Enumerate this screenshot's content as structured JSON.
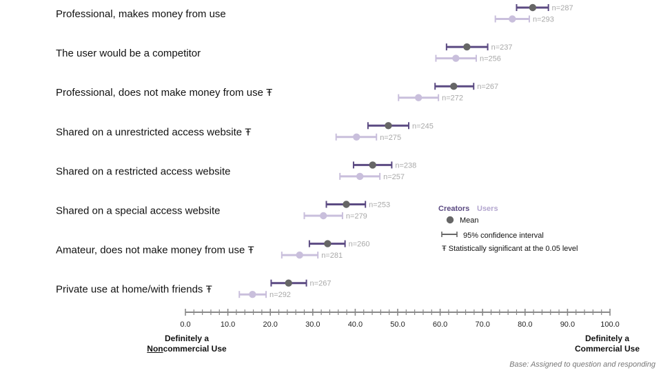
{
  "chart_data": {
    "type": "errorbar",
    "title": "",
    "xlabel": "",
    "xlim": [
      0,
      100
    ],
    "xticks": [
      "0.0",
      "10.0",
      "20.0",
      "30.0",
      "40.0",
      "50.0",
      "60.0",
      "70.0",
      "80.0",
      "90.0",
      "100.0"
    ],
    "x_minor_step": 2,
    "axis_end_labels": {
      "left_line1": "Definitely a",
      "left_underlined": "Non",
      "left_rest": "commercial Use",
      "right_line1": "Definitely a",
      "right_line2": "Commercial Use"
    },
    "series": [
      {
        "name": "Creators",
        "color": "#5b4a82",
        "marker_color": "#666666"
      },
      {
        "name": "Users",
        "color": "#c9bfdc",
        "marker_color": "#c9bfdc"
      }
    ],
    "categories": [
      {
        "label": "Professional, makes money from use",
        "creators": {
          "mean": 81.8,
          "low": 78.0,
          "high": 85.5,
          "n": "n=287"
        },
        "users": {
          "mean": 77.0,
          "low": 73.0,
          "high": 81.0,
          "n": "n=293"
        }
      },
      {
        "label": "The user would be a competitor",
        "creators": {
          "mean": 66.3,
          "low": 61.5,
          "high": 71.2,
          "n": "n=237"
        },
        "users": {
          "mean": 63.7,
          "low": 59.0,
          "high": 68.5,
          "n": "n=256"
        }
      },
      {
        "label": "Professional, does not make money from use Ŧ",
        "creators": {
          "mean": 63.2,
          "low": 58.8,
          "high": 67.9,
          "n": "n=267"
        },
        "users": {
          "mean": 54.9,
          "low": 50.2,
          "high": 59.6,
          "n": "n=272"
        }
      },
      {
        "label": "Shared on a unrestricted access website Ŧ",
        "creators": {
          "mean": 47.8,
          "low": 43.0,
          "high": 52.6,
          "n": "n=245"
        },
        "users": {
          "mean": 40.3,
          "low": 35.5,
          "high": 45.0,
          "n": "n=275"
        }
      },
      {
        "label": "Shared on a restricted access website",
        "creators": {
          "mean": 44.1,
          "low": 39.6,
          "high": 48.6,
          "n": "n=238"
        },
        "users": {
          "mean": 41.1,
          "low": 36.4,
          "high": 45.8,
          "n": "n=257"
        }
      },
      {
        "label": "Shared on a special access website",
        "creators": {
          "mean": 37.9,
          "low": 33.2,
          "high": 42.4,
          "n": "n=253"
        },
        "users": {
          "mean": 32.5,
          "low": 28.0,
          "high": 37.0,
          "n": "n=279"
        }
      },
      {
        "label": "Amateur, does not make money from use Ŧ",
        "creators": {
          "mean": 33.5,
          "low": 29.2,
          "high": 37.6,
          "n": "n=260"
        },
        "users": {
          "mean": 26.9,
          "low": 22.7,
          "high": 31.2,
          "n": "n=281"
        }
      },
      {
        "label": "Private use at home/with friends Ŧ",
        "creators": {
          "mean": 24.3,
          "low": 20.2,
          "high": 28.5,
          "n": "n=267"
        },
        "users": {
          "mean": 15.8,
          "low": 12.7,
          "high": 19.0,
          "n": "n=292"
        }
      }
    ],
    "legend": {
      "creators_label": "Creators",
      "users_label": "Users",
      "mean_label": "Mean",
      "ci_label": "95% confidence interval",
      "sig_label": "Ŧ Statistically significant at the 0.05 level"
    },
    "note": "Base: Assigned to question and responding"
  }
}
